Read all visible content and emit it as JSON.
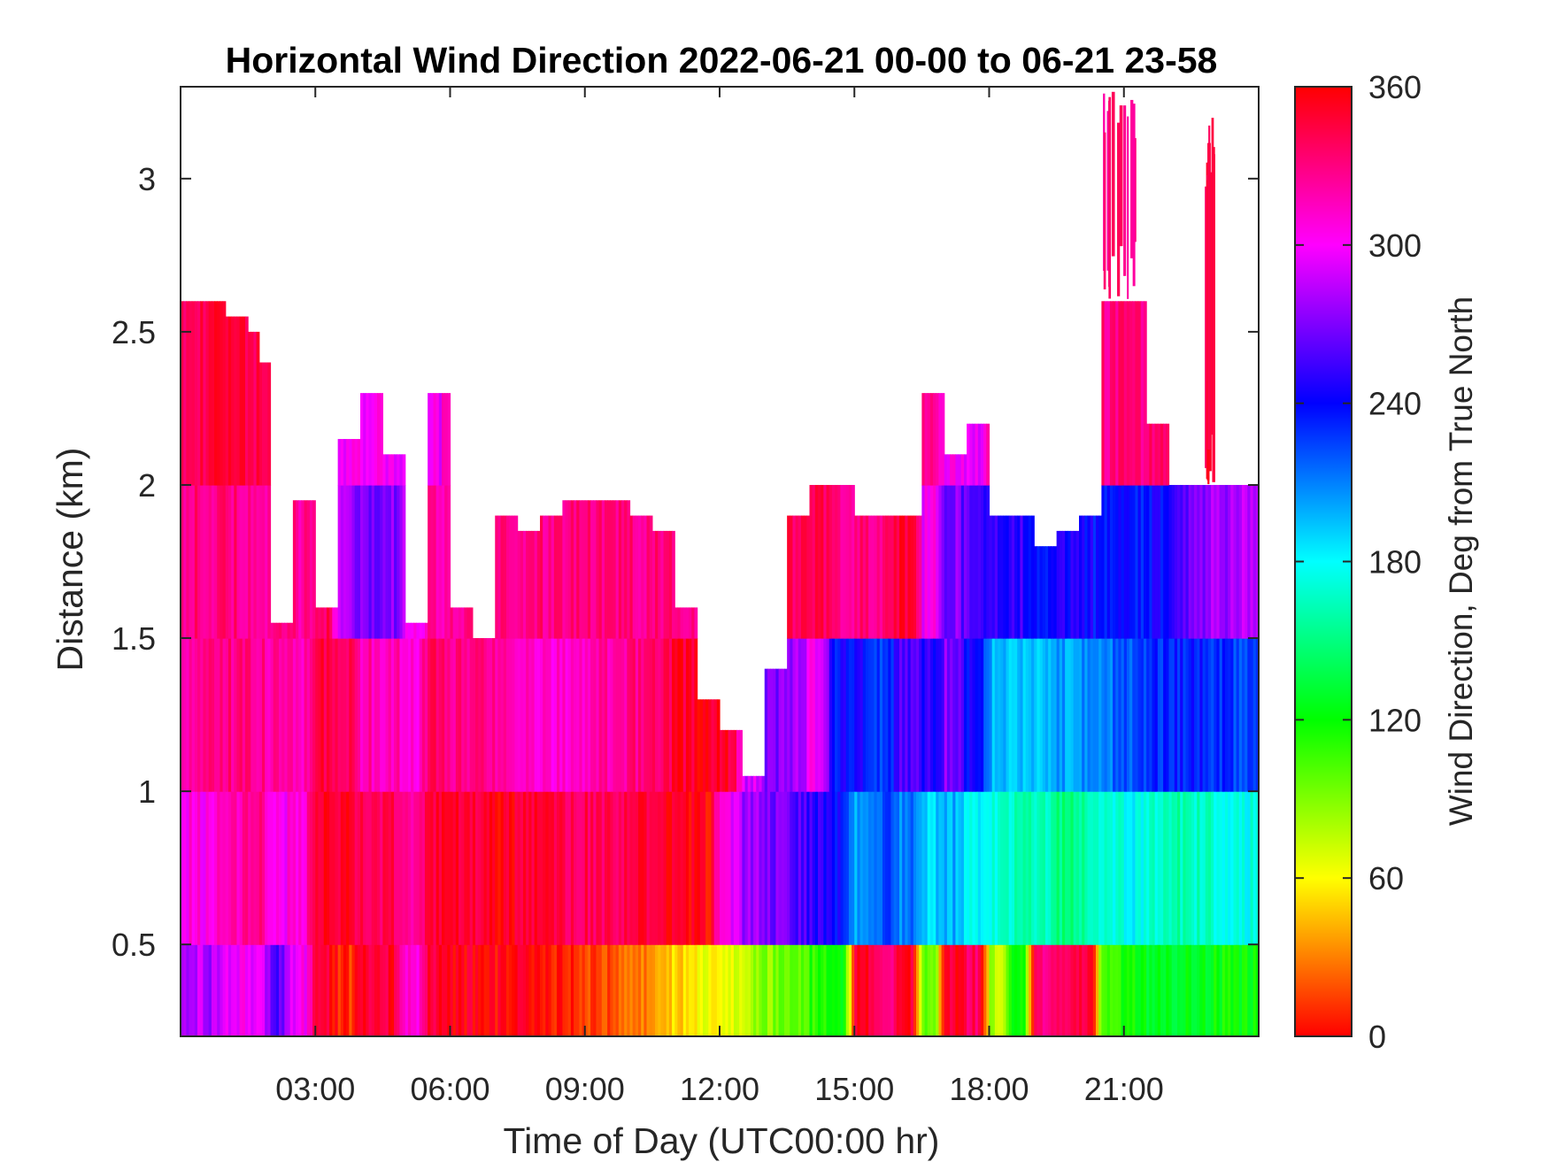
{
  "chart_data": {
    "type": "heatmap",
    "title": "Horizontal Wind Direction 2022-06-21 00-00 to 06-21 23-58",
    "xlabel": "Time of Day (UTC00:00 hr)",
    "ylabel": "Distance (km)",
    "colorbar_label": "Wind Direction, Deg from True North",
    "xlim": [
      0,
      24
    ],
    "ylim": [
      0.2,
      3.3
    ],
    "x_ticks": [
      3,
      6,
      9,
      12,
      15,
      18,
      21
    ],
    "x_tick_labels": [
      "03:00",
      "06:00",
      "09:00",
      "12:00",
      "15:00",
      "18:00",
      "21:00"
    ],
    "y_ticks": [
      0.5,
      1,
      1.5,
      2,
      2.5,
      3
    ],
    "y_tick_labels": [
      "0.5",
      "1",
      "1.5",
      "2",
      "2.5",
      "3"
    ],
    "clim": [
      0,
      360
    ],
    "colorbar_ticks": [
      0,
      60,
      120,
      180,
      240,
      300,
      360
    ],
    "colorbar_tick_labels": [
      "0",
      "60",
      "120",
      "180",
      "240",
      "300",
      "360"
    ],
    "colormap": "hsv",
    "colormap_stops": [
      {
        "value": 0,
        "color": "#ff0000"
      },
      {
        "value": 60,
        "color": "#ffff00"
      },
      {
        "value": 120,
        "color": "#00ff00"
      },
      {
        "value": 180,
        "color": "#00ffff"
      },
      {
        "value": 240,
        "color": "#0000ff"
      },
      {
        "value": 300,
        "color": "#ff00ff"
      },
      {
        "value": 360,
        "color": "#ff0000"
      }
    ],
    "time_bin_hours": 0.25,
    "time_bin_starts_hours": [
      0,
      0.25,
      0.5,
      0.75,
      1,
      1.25,
      1.5,
      1.75,
      2,
      2.25,
      2.5,
      2.75,
      3,
      3.25,
      3.5,
      3.75,
      4,
      4.25,
      4.5,
      4.75,
      5,
      5.25,
      5.5,
      5.75,
      6,
      6.25,
      6.5,
      6.75,
      7,
      7.25,
      7.5,
      7.75,
      8,
      8.25,
      8.5,
      8.75,
      9,
      9.25,
      9.5,
      9.75,
      10,
      10.25,
      10.5,
      10.75,
      11,
      11.25,
      11.5,
      11.75,
      12,
      12.25,
      12.5,
      12.75,
      13,
      13.25,
      13.5,
      13.75,
      14,
      14.25,
      14.5,
      14.75,
      15,
      15.25,
      15.5,
      15.75,
      16,
      16.25,
      16.5,
      16.75,
      17,
      17.25,
      17.5,
      17.75,
      18,
      18.25,
      18.5,
      18.75,
      19,
      19.25,
      19.5,
      19.75,
      20,
      20.25,
      20.5,
      20.75,
      21,
      21.25,
      21.5,
      21.75,
      22,
      22.25,
      22.5,
      22.75,
      23,
      23.25,
      23.5,
      23.75
    ],
    "data_top_km": [
      2.6,
      2.6,
      2.6,
      2.6,
      2.55,
      2.55,
      2.5,
      2.4,
      1.55,
      1.55,
      1.95,
      1.95,
      1.6,
      1.6,
      2.15,
      2.15,
      2.3,
      2.3,
      2.1,
      2.1,
      1.55,
      1.55,
      2.3,
      2.3,
      1.6,
      1.6,
      1.5,
      1.5,
      1.9,
      1.9,
      1.85,
      1.85,
      1.9,
      1.9,
      1.95,
      1.95,
      1.95,
      1.95,
      1.95,
      1.95,
      1.9,
      1.9,
      1.85,
      1.85,
      1.6,
      1.6,
      1.3,
      1.3,
      1.2,
      1.2,
      1.05,
      1.05,
      1.4,
      1.4,
      1.9,
      1.9,
      2.0,
      2.0,
      2.0,
      2.0,
      1.9,
      1.9,
      1.9,
      1.9,
      1.9,
      1.9,
      2.3,
      2.3,
      2.1,
      2.1,
      2.2,
      2.2,
      1.9,
      1.9,
      1.9,
      1.9,
      1.8,
      1.8,
      1.85,
      1.85,
      1.9,
      1.9,
      2.6,
      2.6,
      2.6,
      2.6,
      2.2,
      2.2,
      2.0,
      2.0,
      2.0,
      2.0,
      2.0,
      2.0,
      2.0,
      2.0
    ],
    "layers": [
      {
        "from_km": 0.2,
        "to_km": 0.5,
        "direction_deg": [
          280,
          290,
          280,
          280,
          300,
          300,
          300,
          300,
          260,
          260,
          300,
          300,
          350,
          350,
          10,
          10,
          350,
          350,
          350,
          350,
          310,
          310,
          350,
          350,
          355,
          355,
          355,
          355,
          0,
          0,
          355,
          355,
          0,
          0,
          10,
          10,
          15,
          15,
          20,
          20,
          30,
          30,
          40,
          40,
          50,
          50,
          60,
          60,
          60,
          60,
          80,
          80,
          90,
          90,
          100,
          100,
          110,
          110,
          120,
          120,
          350,
          350,
          330,
          330,
          350,
          350,
          100,
          100,
          350,
          350,
          340,
          340,
          80,
          80,
          120,
          120,
          330,
          330,
          340,
          340,
          350,
          350,
          110,
          110,
          120,
          120,
          130,
          130,
          130,
          130,
          125,
          125,
          120,
          120,
          120,
          120
        ]
      },
      {
        "from_km": 0.5,
        "to_km": 1.0,
        "direction_deg": [
          300,
          310,
          300,
          310,
          320,
          320,
          330,
          330,
          300,
          300,
          310,
          310,
          355,
          355,
          350,
          350,
          340,
          340,
          340,
          340,
          320,
          320,
          350,
          350,
          350,
          350,
          350,
          350,
          355,
          355,
          350,
          350,
          345,
          345,
          340,
          340,
          340,
          340,
          340,
          340,
          345,
          345,
          350,
          350,
          355,
          355,
          0,
          0,
          300,
          300,
          280,
          280,
          270,
          270,
          260,
          260,
          250,
          250,
          240,
          240,
          200,
          200,
          220,
          220,
          210,
          210,
          190,
          190,
          200,
          200,
          180,
          180,
          170,
          170,
          165,
          165,
          160,
          160,
          150,
          150,
          160,
          160,
          170,
          170,
          180,
          180,
          170,
          170,
          160,
          160,
          165,
          165,
          170,
          170,
          175,
          175
        ]
      },
      {
        "from_km": 1.0,
        "to_km": 1.5,
        "direction_deg": [
          320,
          320,
          330,
          330,
          330,
          330,
          330,
          330,
          320,
          320,
          320,
          320,
          345,
          345,
          340,
          340,
          320,
          320,
          320,
          320,
          310,
          310,
          340,
          340,
          330,
          330,
          330,
          330,
          320,
          320,
          320,
          320,
          310,
          310,
          315,
          315,
          320,
          320,
          320,
          320,
          330,
          330,
          340,
          340,
          350,
          350,
          355,
          355,
          350,
          350,
          290,
          290,
          270,
          270,
          280,
          280,
          300,
          300,
          240,
          240,
          240,
          240,
          230,
          230,
          260,
          260,
          250,
          250,
          270,
          270,
          240,
          240,
          200,
          200,
          190,
          190,
          195,
          195,
          200,
          200,
          210,
          210,
          215,
          215,
          220,
          220,
          230,
          230,
          235,
          235,
          235,
          235,
          230,
          230,
          225,
          225
        ]
      },
      {
        "from_km": 1.5,
        "to_km": 2.0,
        "direction_deg": [
          330,
          330,
          330,
          330,
          330,
          330,
          330,
          330,
          325,
          325,
          325,
          325,
          340,
          340,
          280,
          280,
          270,
          270,
          270,
          270,
          300,
          300,
          320,
          320,
          330,
          330,
          330,
          330,
          330,
          330,
          330,
          330,
          330,
          330,
          330,
          330,
          330,
          330,
          330,
          330,
          330,
          330,
          330,
          330,
          330,
          330,
          330,
          330,
          330,
          330,
          330,
          330,
          330,
          330,
          340,
          340,
          340,
          340,
          330,
          330,
          330,
          330,
          330,
          330,
          350,
          350,
          300,
          300,
          270,
          270,
          260,
          260,
          250,
          250,
          250,
          250,
          240,
          240,
          245,
          245,
          240,
          240,
          235,
          235,
          235,
          235,
          240,
          240,
          250,
          250,
          270,
          270,
          280,
          280,
          285,
          285
        ]
      },
      {
        "from_km": 2.0,
        "to_km": 2.6,
        "direction_deg": [
          340,
          340,
          345,
          345,
          345,
          345,
          345,
          345,
          330,
          330,
          330,
          330,
          330,
          330,
          300,
          300,
          300,
          300,
          300,
          300,
          300,
          300,
          300,
          300,
          330,
          330,
          330,
          330,
          330,
          330,
          330,
          330,
          330,
          330,
          330,
          330,
          330,
          330,
          330,
          330,
          330,
          330,
          330,
          330,
          330,
          330,
          330,
          330,
          330,
          330,
          330,
          330,
          330,
          330,
          330,
          330,
          330,
          330,
          330,
          330,
          330,
          330,
          330,
          330,
          330,
          330,
          330,
          330,
          300,
          300,
          300,
          300,
          320,
          320,
          320,
          320,
          300,
          300,
          300,
          300,
          300,
          300,
          330,
          330,
          330,
          330,
          335,
          335,
          335,
          335,
          330,
          330,
          330,
          330,
          330,
          330
        ]
      }
    ],
    "sparse_plumes": [
      {
        "time_start_hours": 20.5,
        "time_end_hours": 21.3,
        "from_km": 2.6,
        "to_km": 3.3,
        "direction_deg": 330
      },
      {
        "time_start_hours": 22.8,
        "time_end_hours": 23.0,
        "from_km": 2.0,
        "to_km": 3.2,
        "direction_deg": 345
      }
    ]
  }
}
